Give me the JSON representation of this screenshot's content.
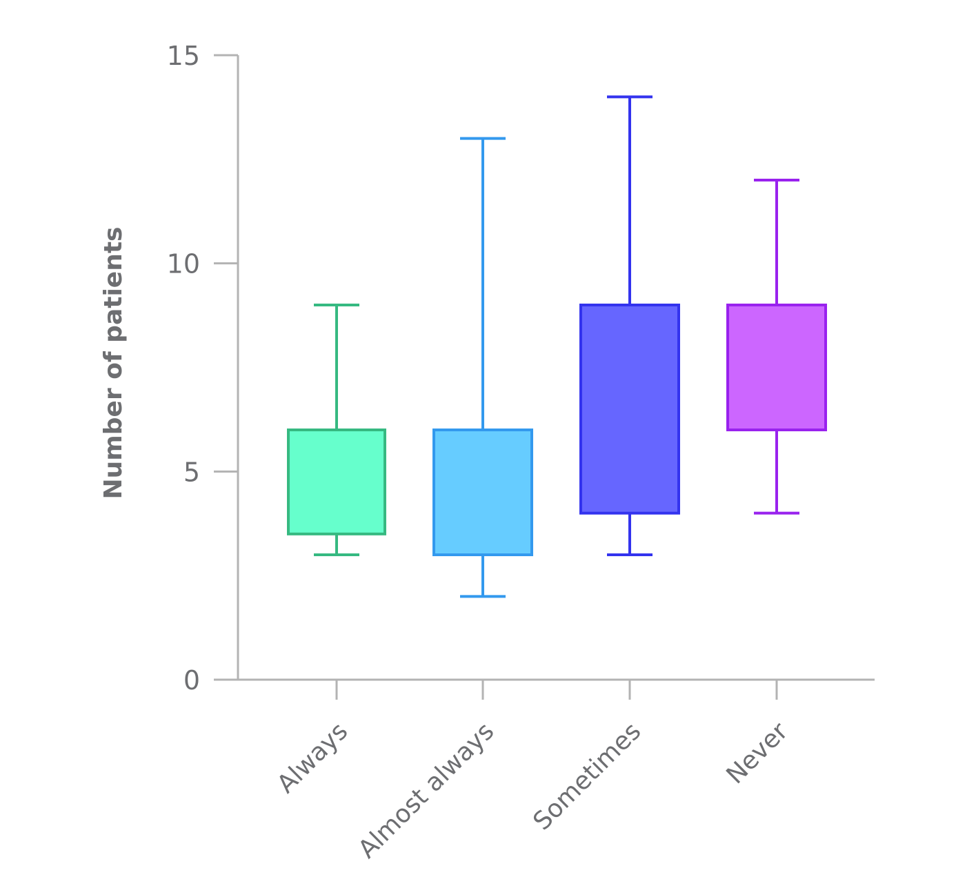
{
  "chart_data": {
    "type": "boxplot",
    "title": "",
    "xlabel": "",
    "ylabel": "Number of patients",
    "ylim": [
      0,
      15
    ],
    "yticks": [
      0,
      5,
      10,
      15
    ],
    "ytick_labels": [
      "0",
      "5",
      "10",
      "15"
    ],
    "grid": false,
    "categories": [
      "Always",
      "Almost always",
      "Sometimes",
      "Never"
    ],
    "boxes": [
      {
        "name": "Always",
        "min": 3,
        "q1": 3.5,
        "q3": 6,
        "max": 9,
        "stroke": "#36b981",
        "fill": "#66ffcc"
      },
      {
        "name": "Almost always",
        "min": 2,
        "q1": 3,
        "q3": 6,
        "max": 13,
        "stroke": "#3399ee",
        "fill": "#66ccff"
      },
      {
        "name": "Sometimes",
        "min": 3,
        "q1": 4,
        "q3": 9,
        "max": 14,
        "stroke": "#3333ee",
        "fill": "#6666ff"
      },
      {
        "name": "Never",
        "min": 4,
        "q1": 6,
        "q3": 9,
        "max": 12,
        "stroke": "#9922ee",
        "fill": "#cc66ff"
      }
    ],
    "axis_color": "#b3b3b3",
    "text_color": "#6d6e71"
  }
}
